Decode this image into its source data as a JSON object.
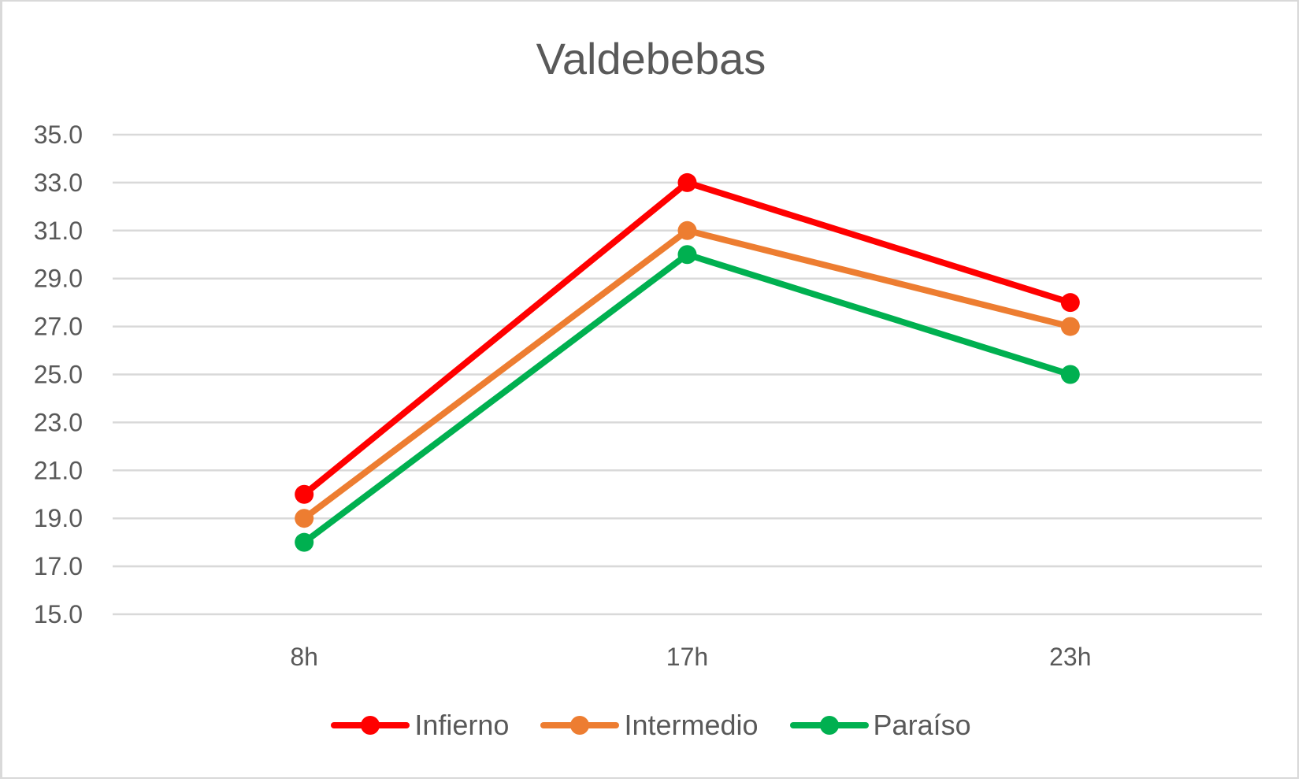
{
  "chart_data": {
    "type": "line",
    "title": "Valdebebas",
    "xlabel": "",
    "ylabel": "",
    "categories": [
      "8h",
      "17h",
      "23h"
    ],
    "series": [
      {
        "name": "Infierno",
        "values": [
          20,
          33,
          28
        ],
        "color": "#ff0000"
      },
      {
        "name": "Intermedio",
        "values": [
          19,
          31,
          27
        ],
        "color": "#ed7d31"
      },
      {
        "name": "Paraíso",
        "values": [
          18,
          30,
          25
        ],
        "color": "#00b050"
      }
    ],
    "ylim": [
      15,
      35
    ],
    "yticks": [
      "35.0",
      "33.0",
      "31.0",
      "29.0",
      "27.0",
      "25.0",
      "23.0",
      "21.0",
      "19.0",
      "17.0",
      "15.0"
    ],
    "grid": true,
    "legend_position": "bottom",
    "markers": true
  }
}
